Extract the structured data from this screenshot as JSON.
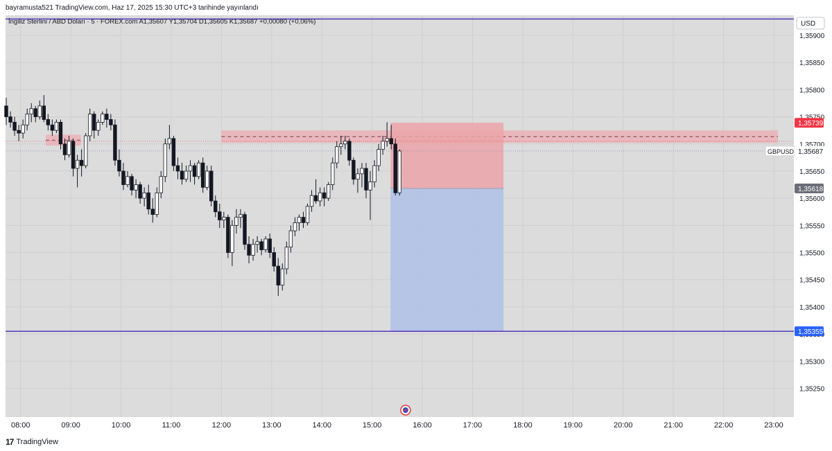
{
  "header": {
    "publish_line": "bayramusta521 TradingView.com, Haz 17, 2025 15:30 UTC+3 tarihinde yayınlandı",
    "symbol_line": "İngiliz Sterlini / ABD Doları · 5 · FOREX.com  A1,35607  Y1,35704  D1,35605  K1,35687  +0,00080 (+0,06%)"
  },
  "footer": {
    "logo_mark": "17",
    "brand": "TradingView"
  },
  "colors": {
    "background": "#dcdcdc",
    "candle_up": "#ffffff",
    "candle_down": "#131722",
    "stop_zone": "#eba3a8",
    "target_zone": "#b3c2e6",
    "supply_zone": "#e9b4b8",
    "level_line": "#4527b8",
    "blue_label": "#2962ff",
    "red_label": "#f23645",
    "grey_label": "#6a6d78"
  },
  "chart_data": {
    "type": "candlestick",
    "symbol": "GBPUSD",
    "currency": "USD",
    "timeframe": "5",
    "y_ticks": [
      "1,35900",
      "1,35850",
      "1,35800",
      "1,35750",
      "1,35700",
      "1,35650",
      "1,35600",
      "1,35550",
      "1,35500",
      "1,35450",
      "1,35400",
      "1,35350",
      "1,35300",
      "1,35250"
    ],
    "x_ticks": [
      "08:00",
      "09:00",
      "10:00",
      "11:00",
      "12:00",
      "13:00",
      "14:00",
      "15:00",
      "16:00",
      "17:00",
      "18:00",
      "19:00",
      "20:00",
      "21:00",
      "22:00",
      "23:00"
    ],
    "ylim": [
      1.35197,
      1.35937
    ],
    "xlim": [
      "07:42",
      "23:24"
    ],
    "candles": [
      [
        "07:42",
        1.3577,
        1.35785,
        1.35735,
        1.3575
      ],
      [
        "07:47",
        1.3575,
        1.3576,
        1.3573,
        1.3574
      ],
      [
        "07:52",
        1.3574,
        1.3575,
        1.35715,
        1.35725
      ],
      [
        "07:57",
        1.35725,
        1.35735,
        1.35705,
        1.3572
      ],
      [
        "08:02",
        1.3572,
        1.35745,
        1.3571,
        1.35735
      ],
      [
        "08:07",
        1.35735,
        1.35765,
        1.35725,
        1.35755
      ],
      [
        "08:12",
        1.35755,
        1.35775,
        1.3574,
        1.35765
      ],
      [
        "08:17",
        1.35765,
        1.3577,
        1.3574,
        1.3575
      ],
      [
        "08:22",
        1.3575,
        1.3578,
        1.35745,
        1.3577
      ],
      [
        "08:27",
        1.3577,
        1.3579,
        1.3574,
        1.35745
      ],
      [
        "08:32",
        1.35745,
        1.35755,
        1.35725,
        1.35735
      ],
      [
        "08:37",
        1.35735,
        1.35745,
        1.35715,
        1.35725
      ],
      [
        "08:42",
        1.35725,
        1.35745,
        1.3572,
        1.3574
      ],
      [
        "08:47",
        1.3574,
        1.35745,
        1.3569,
        1.357
      ],
      [
        "08:52",
        1.357,
        1.3571,
        1.3567,
        1.3568
      ],
      [
        "08:57",
        1.3568,
        1.35715,
        1.35675,
        1.35705
      ],
      [
        "09:02",
        1.35705,
        1.3571,
        1.3564,
        1.35655
      ],
      [
        "09:07",
        1.35655,
        1.3568,
        1.3562,
        1.3567
      ],
      [
        "09:12",
        1.3567,
        1.3569,
        1.3564,
        1.3566
      ],
      [
        "09:17",
        1.3566,
        1.3572,
        1.35655,
        1.35715
      ],
      [
        "09:22",
        1.35715,
        1.35765,
        1.35705,
        1.35755
      ],
      [
        "09:27",
        1.35755,
        1.3576,
        1.3571,
        1.35725
      ],
      [
        "09:32",
        1.35725,
        1.35745,
        1.35715,
        1.3574
      ],
      [
        "09:37",
        1.3574,
        1.3576,
        1.35735,
        1.35755
      ],
      [
        "09:42",
        1.35755,
        1.35765,
        1.3573,
        1.35745
      ],
      [
        "09:47",
        1.35745,
        1.35755,
        1.35725,
        1.35735
      ],
      [
        "09:52",
        1.35735,
        1.35745,
        1.3566,
        1.3567
      ],
      [
        "09:57",
        1.3567,
        1.3569,
        1.3564,
        1.3565
      ],
      [
        "10:02",
        1.3565,
        1.35665,
        1.35615,
        1.35625
      ],
      [
        "10:07",
        1.35625,
        1.3565,
        1.3562,
        1.3564
      ],
      [
        "10:12",
        1.3564,
        1.35645,
        1.35605,
        1.35615
      ],
      [
        "10:17",
        1.35615,
        1.35635,
        1.356,
        1.35625
      ],
      [
        "10:22",
        1.35625,
        1.3563,
        1.3559,
        1.356
      ],
      [
        "10:27",
        1.356,
        1.3562,
        1.35585,
        1.3561
      ],
      [
        "10:32",
        1.3561,
        1.35625,
        1.3557,
        1.3558
      ],
      [
        "10:37",
        1.3558,
        1.356,
        1.35555,
        1.3557
      ],
      [
        "10:42",
        1.3557,
        1.3562,
        1.35565,
        1.3561
      ],
      [
        "10:47",
        1.3561,
        1.3565,
        1.356,
        1.3564
      ],
      [
        "10:52",
        1.3564,
        1.3571,
        1.3563,
        1.357
      ],
      [
        "10:57",
        1.357,
        1.35735,
        1.3569,
        1.3571
      ],
      [
        "11:02",
        1.3571,
        1.35715,
        1.3565,
        1.3566
      ],
      [
        "11:07",
        1.3566,
        1.35675,
        1.35635,
        1.3565
      ],
      [
        "11:12",
        1.3565,
        1.35665,
        1.35625,
        1.35635
      ],
      [
        "11:17",
        1.35635,
        1.3566,
        1.3563,
        1.3565
      ],
      [
        "11:22",
        1.3565,
        1.3567,
        1.3563,
        1.3566
      ],
      [
        "11:27",
        1.3566,
        1.35665,
        1.35625,
        1.3564
      ],
      [
        "11:32",
        1.3564,
        1.3567,
        1.35635,
        1.35665
      ],
      [
        "11:37",
        1.35665,
        1.35675,
        1.3561,
        1.3562
      ],
      [
        "11:42",
        1.3562,
        1.3566,
        1.35615,
        1.3565
      ],
      [
        "11:47",
        1.3565,
        1.3566,
        1.35585,
        1.35595
      ],
      [
        "11:52",
        1.35595,
        1.35605,
        1.35565,
        1.35575
      ],
      [
        "11:57",
        1.35575,
        1.3559,
        1.35545,
        1.3556
      ],
      [
        "12:02",
        1.3556,
        1.35575,
        1.35545,
        1.35565
      ],
      [
        "12:07",
        1.35565,
        1.3557,
        1.3549,
        1.355
      ],
      [
        "12:12",
        1.355,
        1.3556,
        1.35475,
        1.3555
      ],
      [
        "12:17",
        1.3555,
        1.3558,
        1.35535,
        1.35565
      ],
      [
        "12:22",
        1.35565,
        1.3558,
        1.35545,
        1.3557
      ],
      [
        "12:27",
        1.3557,
        1.35575,
        1.35505,
        1.35515
      ],
      [
        "12:32",
        1.35515,
        1.3553,
        1.3548,
        1.35495
      ],
      [
        "12:37",
        1.35495,
        1.35525,
        1.35485,
        1.35515
      ],
      [
        "12:42",
        1.35515,
        1.3553,
        1.355,
        1.3552
      ],
      [
        "12:47",
        1.3552,
        1.35525,
        1.35495,
        1.35505
      ],
      [
        "12:52",
        1.35505,
        1.3553,
        1.355,
        1.35525
      ],
      [
        "12:57",
        1.35525,
        1.35535,
        1.3549,
        1.355
      ],
      [
        "13:02",
        1.355,
        1.3551,
        1.35465,
        1.35475
      ],
      [
        "13:07",
        1.35475,
        1.3549,
        1.3542,
        1.3544
      ],
      [
        "13:12",
        1.3544,
        1.3548,
        1.3543,
        1.3547
      ],
      [
        "13:17",
        1.3547,
        1.3552,
        1.3546,
        1.3551
      ],
      [
        "13:22",
        1.3551,
        1.3555,
        1.355,
        1.3554
      ],
      [
        "13:27",
        1.3554,
        1.35565,
        1.3553,
        1.35555
      ],
      [
        "13:32",
        1.35555,
        1.3557,
        1.3554,
        1.35565
      ],
      [
        "13:37",
        1.35565,
        1.35575,
        1.35545,
        1.35555
      ],
      [
        "13:42",
        1.35555,
        1.3559,
        1.3555,
        1.35585
      ],
      [
        "13:47",
        1.35585,
        1.35615,
        1.35575,
        1.35605
      ],
      [
        "13:52",
        1.35605,
        1.35635,
        1.3559,
        1.35595
      ],
      [
        "13:57",
        1.35595,
        1.3562,
        1.35585,
        1.3561
      ],
      [
        "14:02",
        1.3561,
        1.3562,
        1.35585,
        1.356
      ],
      [
        "14:07",
        1.356,
        1.3563,
        1.35595,
        1.35625
      ],
      [
        "14:12",
        1.35625,
        1.35675,
        1.35615,
        1.35665
      ],
      [
        "14:17",
        1.35665,
        1.35705,
        1.35655,
        1.35695
      ],
      [
        "14:22",
        1.35695,
        1.35715,
        1.3568,
        1.357
      ],
      [
        "14:27",
        1.357,
        1.35715,
        1.3569,
        1.35705
      ],
      [
        "14:32",
        1.35705,
        1.3571,
        1.3566,
        1.3567
      ],
      [
        "14:37",
        1.3567,
        1.35675,
        1.35625,
        1.35635
      ],
      [
        "14:42",
        1.35635,
        1.35655,
        1.3561,
        1.35645
      ],
      [
        "14:47",
        1.35645,
        1.35665,
        1.3562,
        1.35655
      ],
      [
        "14:52",
        1.35655,
        1.35665,
        1.356,
        1.35615
      ],
      [
        "14:57",
        1.35615,
        1.3565,
        1.3556,
        1.3563
      ],
      [
        "15:02",
        1.3563,
        1.3567,
        1.3562,
        1.3566
      ],
      [
        "15:07",
        1.3566,
        1.357,
        1.3565,
        1.3569
      ],
      [
        "15:12",
        1.3569,
        1.35715,
        1.3568,
        1.35705
      ],
      [
        "15:17",
        1.35705,
        1.3574,
        1.35695,
        1.3571
      ],
      [
        "15:22",
        1.3571,
        1.35735,
        1.3569,
        1.357
      ],
      [
        "15:27",
        1.357,
        1.3571,
        1.35605,
        1.3561
      ],
      [
        "15:32",
        1.3561,
        1.3569,
        1.35605,
        1.35687
      ]
    ],
    "levels": [
      {
        "type": "horizontal_line",
        "price": 1.3593
      },
      {
        "type": "horizontal_line",
        "price": 1.35355,
        "label": "1,35355"
      }
    ],
    "price_markers": [
      {
        "price": 1.35739,
        "label": "1,35739",
        "style": "red"
      },
      {
        "price": 1.35687,
        "label": "GBPUSD 1,35687",
        "style": "white"
      },
      {
        "price": 1.35618,
        "label": "1,35618",
        "style": "grey"
      }
    ],
    "zones": [
      {
        "kind": "supply",
        "from": "08:30",
        "to": "09:12",
        "top": 1.35717,
        "bottom": 1.35697
      },
      {
        "kind": "supply",
        "from": "12:00",
        "to": "23:05",
        "top": 1.35725,
        "bottom": 1.35702
      }
    ],
    "position": {
      "type": "short",
      "from": "15:22",
      "to": "17:37",
      "entry": 1.35618,
      "stop": 1.35739,
      "target": 1.35355
    },
    "event_marker": {
      "time": "15:40",
      "icon": "us-flag-icon"
    }
  }
}
